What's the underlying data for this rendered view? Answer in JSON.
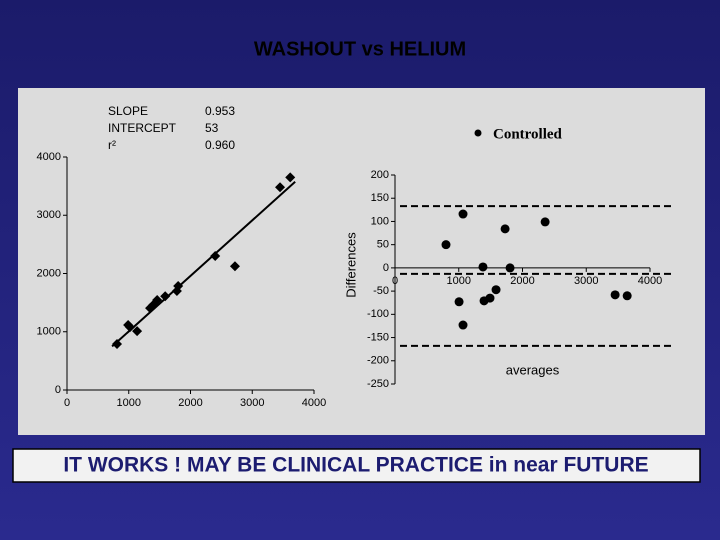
{
  "title": "WASHOUT vs HELIUM",
  "footer": "IT WORKS ! MAY BE CLINICAL PRACTICE in near FUTURE",
  "chart_data": [
    {
      "type": "scatter",
      "marker": "diamond",
      "fit_line": true,
      "stats": [
        {
          "label": "SLOPE",
          "value": 0.953
        },
        {
          "label": "INTERCEPT",
          "value": 53
        },
        {
          "label": "r²",
          "value": 0.96,
          "value_label": "0.960"
        }
      ],
      "x": [
        810,
        990,
        1020,
        1135,
        1345,
        1395,
        1460,
        1590,
        1780,
        1800,
        2400,
        2720,
        3450,
        3615
      ],
      "series": [
        {
          "color": "#000000",
          "values": [
            790,
            1115,
            1080,
            1010,
            1405,
            1460,
            1545,
            1610,
            1700,
            1785,
            2300,
            2125,
            3480,
            3650
          ]
        }
      ],
      "xlim": [
        0,
        4000
      ],
      "xticks": [
        0,
        1000,
        2000,
        3000,
        4000
      ],
      "ylim": [
        0,
        4000
      ],
      "yticks": [
        0,
        1000,
        2000,
        3000,
        4000
      ]
    },
    {
      "type": "scatter",
      "marker": "circle",
      "xlabel": "averages",
      "ylabel": "Differences",
      "legend": "upper right",
      "x": [
        1067,
        800,
        1727,
        2355,
        1380,
        1805,
        1005,
        1397,
        1490,
        1585,
        1067,
        3453,
        3642
      ],
      "series": [
        {
          "name": "Controlled",
          "color": "#000000",
          "values": [
            116,
            50,
            84,
            99,
            2,
            0,
            -73,
            -71,
            -65,
            -47,
            -123,
            -58,
            -60
          ]
        }
      ],
      "reference_lines": [
        {
          "value": 133
        },
        {
          "value": -13
        },
        {
          "value": -168
        }
      ],
      "xlim": [
        0,
        4000
      ],
      "xticks": [
        0,
        1000,
        2000,
        3000,
        4000
      ],
      "ylim": [
        -250,
        200
      ],
      "yticks": [
        -250,
        -200,
        -150,
        -100,
        -50,
        0,
        50,
        100,
        150,
        200
      ]
    }
  ]
}
